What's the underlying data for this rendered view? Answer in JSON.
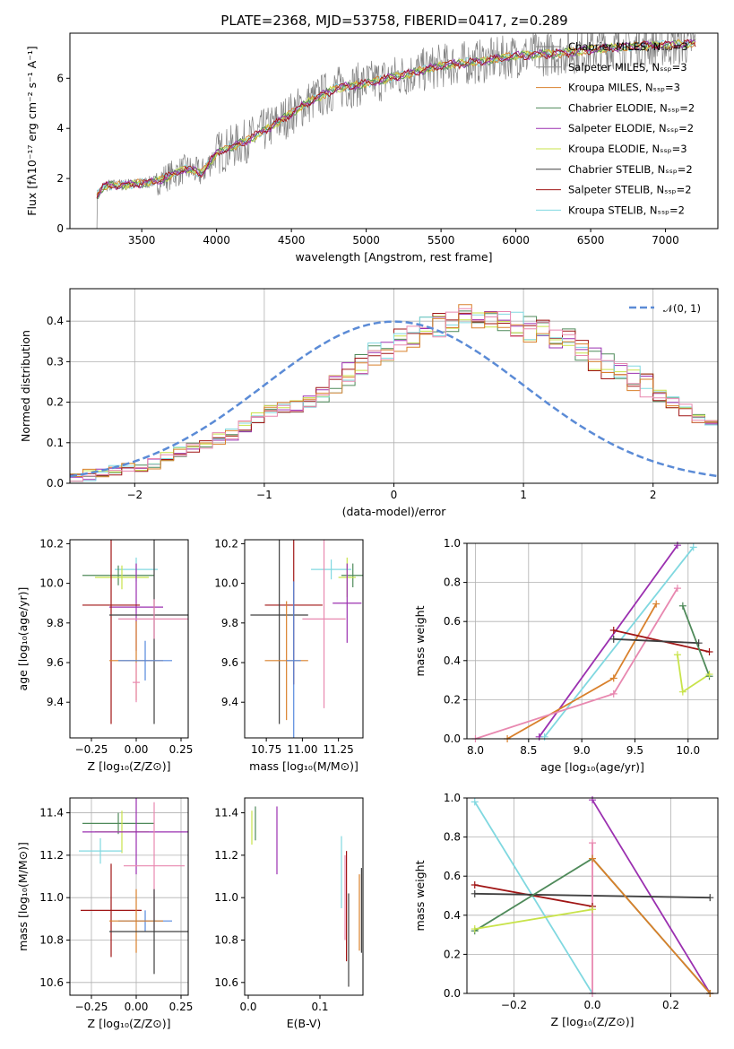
{
  "colors": {
    "chabrier_miles": "#808080",
    "salpeter_miles": "#8f8f8f",
    "kroupa_miles": "#d9802b",
    "chabrier_elodie": "#4f8a5a",
    "salpeter_elodie": "#9b30b0",
    "kroupa_elodie": "#c8e34a",
    "chabrier_stelib": "#404040",
    "salpeter_stelib": "#a01515",
    "kroupa_stelib": "#80d8e0",
    "pink": "#e888b0",
    "blue": "#5588dd",
    "normal_dash": "#5b8bd6"
  },
  "chart_data": [
    {
      "type": "line",
      "title": "PLATE=2368, MJD=53758, FIBERID=0417, z=0.289",
      "xlabel": "wavelength [Angstrom, rest frame]",
      "ylabel": "Flux [fλ10⁻¹⁷ erg cm⁻² s⁻¹ A⁻¹]",
      "xlim": [
        3020,
        7350
      ],
      "ylim": [
        0,
        7.8
      ],
      "xticks": [
        3500,
        4000,
        4500,
        5000,
        5500,
        6000,
        6500,
        7000
      ],
      "yticks": [
        0,
        2,
        4,
        6
      ],
      "legend_position": "upper-right",
      "legend": [
        "Chabrier MILES, Nₛₛₚ=3",
        "Salpeter MILES, Nₛₛₚ=3",
        "Kroupa MILES, Nₛₛₚ=3",
        "Chabrier ELODIE, Nₛₛₚ=2",
        "Salpeter ELODIE, Nₛₛₚ=2",
        "Kroupa ELODIE, Nₛₛₚ=3",
        "Chabrier STELIB, Nₛₛₚ=2",
        "Salpeter STELIB, Nₛₛₚ=2",
        "Kroupa STELIB, Nₛₛₚ=2"
      ],
      "continuum": {
        "x": [
          3200,
          3250,
          3500,
          3600,
          3800,
          3900,
          4000,
          4200,
          4400,
          4600,
          4800,
          5000,
          5300,
          5500,
          5800,
          6000,
          6300,
          6600,
          6900,
          7200
        ],
        "y": [
          1.3,
          1.7,
          1.8,
          1.9,
          2.4,
          2.2,
          3.0,
          3.5,
          4.2,
          5.0,
          5.6,
          5.8,
          6.2,
          6.5,
          6.7,
          6.9,
          7.0,
          7.2,
          7.3,
          7.4
        ]
      }
    },
    {
      "type": "step",
      "xlabel": "(data-model)/error",
      "ylabel": "Normed distribution",
      "xlim": [
        -2.5,
        2.5
      ],
      "ylim": [
        0,
        0.48
      ],
      "xticks": [
        -2,
        -1,
        0,
        1,
        2
      ],
      "yticks": [
        0.0,
        0.1,
        0.2,
        0.3,
        0.4
      ],
      "legend": [
        "𝒩(0, 1)"
      ],
      "legend_position": "upper-right",
      "bin_width": 0.1,
      "bin_start": -2.5,
      "mean_hist": [
        0.015,
        0.02,
        0.025,
        0.03,
        0.035,
        0.04,
        0.05,
        0.07,
        0.08,
        0.09,
        0.1,
        0.11,
        0.12,
        0.14,
        0.16,
        0.18,
        0.19,
        0.19,
        0.2,
        0.22,
        0.25,
        0.27,
        0.3,
        0.32,
        0.33,
        0.35,
        0.36,
        0.38,
        0.39,
        0.4,
        0.41,
        0.41,
        0.4,
        0.4,
        0.39,
        0.38,
        0.37,
        0.36,
        0.35,
        0.33,
        0.31,
        0.29,
        0.28,
        0.26,
        0.24,
        0.22,
        0.2,
        0.18,
        0.16,
        0.15,
        0.13,
        0.12,
        0.1,
        0.09,
        0.08,
        0.07,
        0.06,
        0.05,
        0.045,
        0.04,
        0.035,
        0.03,
        0.03,
        0.025,
        0.025,
        0.02,
        0.02,
        0.02,
        0.02,
        0.02
      ]
    },
    {
      "type": "errorbar",
      "xlabel": "Z [log₁₀(Z/Z⊙)]",
      "ylabel": "age  [log₁₀(age/yr)]",
      "xlim": [
        -0.37,
        0.29
      ],
      "ylim": [
        9.22,
        10.22
      ],
      "xticks": [
        -0.25,
        0.0,
        0.25
      ],
      "yticks": [
        9.4,
        9.6,
        9.8,
        10.0,
        10.2
      ],
      "points": [
        {
          "x": 0.0,
          "y": 10.07,
          "dx": 0.12,
          "dy": 0.06,
          "c": "kroupa_stelib"
        },
        {
          "x": -0.1,
          "y": 10.04,
          "dx": 0.2,
          "dy": 0.05,
          "c": "chabrier_elodie"
        },
        {
          "x": -0.08,
          "y": 10.03,
          "dx": 0.15,
          "dy": 0.06,
          "c": "kroupa_elodie"
        },
        {
          "x": 0.0,
          "y": 9.88,
          "dx": 0.15,
          "dy": 0.22,
          "c": "salpeter_elodie"
        },
        {
          "x": -0.14,
          "y": 9.89,
          "dx": 0.16,
          "dy": 0.6,
          "c": "salpeter_stelib"
        },
        {
          "x": 0.1,
          "y": 9.84,
          "dx": 0.25,
          "dy": 0.55,
          "c": "chabrier_stelib"
        },
        {
          "x": 0.1,
          "y": 9.82,
          "dx": 0.2,
          "dy": 0.1,
          "c": "pink"
        },
        {
          "x": 0.0,
          "y": 9.61,
          "dx": 0.15,
          "dy": 0.2,
          "c": "kroupa_miles"
        },
        {
          "x": 0.05,
          "y": 9.61,
          "dx": 0.15,
          "dy": 0.1,
          "c": "blue"
        },
        {
          "x": 0.0,
          "y": 9.5,
          "dx": 0.02,
          "dy": 0.1,
          "c": "pink"
        }
      ]
    },
    {
      "type": "errorbar",
      "xlabel": "mass [log₁₀(M/M⊙)]",
      "ylabel": "",
      "xlim": [
        10.6,
        11.42
      ],
      "ylim": [
        9.22,
        10.22
      ],
      "xticks": [
        10.75,
        11.0,
        11.25
      ],
      "yticks": [
        9.4,
        9.6,
        9.8,
        10.0,
        10.2
      ],
      "points": [
        {
          "x": 11.2,
          "y": 10.07,
          "dx": 0.14,
          "dy": 0.05,
          "c": "kroupa_stelib"
        },
        {
          "x": 11.35,
          "y": 10.04,
          "dx": 0.08,
          "dy": 0.06,
          "c": "chabrier_elodie"
        },
        {
          "x": 11.31,
          "y": 10.03,
          "dx": 0.06,
          "dy": 0.1,
          "c": "kroupa_elodie"
        },
        {
          "x": 11.31,
          "y": 9.9,
          "dx": 0.1,
          "dy": 0.2,
          "c": "salpeter_elodie"
        },
        {
          "x": 10.94,
          "y": 9.89,
          "dx": 0.2,
          "dy": 0.4,
          "c": "salpeter_stelib"
        },
        {
          "x": 10.84,
          "y": 9.84,
          "dx": 0.2,
          "dy": 0.55,
          "c": "chabrier_stelib"
        },
        {
          "x": 11.15,
          "y": 9.82,
          "dx": 0.15,
          "dy": 0.45,
          "c": "pink"
        },
        {
          "x": 10.89,
          "y": 9.61,
          "dx": 0.15,
          "dy": 0.3,
          "c": "kroupa_miles"
        },
        {
          "x": 10.94,
          "y": 9.61,
          "dx": 0.05,
          "dy": 0.4,
          "c": "blue"
        }
      ]
    },
    {
      "type": "line",
      "xlabel": "age  [log₁₀(age/yr)]",
      "ylabel": "mass weight",
      "xlim": [
        7.92,
        10.28
      ],
      "ylim": [
        0,
        1.0
      ],
      "xticks": [
        8.0,
        8.5,
        9.0,
        9.5,
        10.0
      ],
      "yticks": [
        0.0,
        0.2,
        0.4,
        0.6,
        0.8,
        1.0
      ],
      "series": [
        {
          "c": "salpeter_elodie",
          "x": [
            8.6,
            9.9
          ],
          "y": [
            0.01,
            0.99
          ]
        },
        {
          "c": "kroupa_stelib",
          "x": [
            8.65,
            10.05
          ],
          "y": [
            0.01,
            0.98
          ]
        },
        {
          "c": "kroupa_miles",
          "x": [
            8.3,
            9.3,
            9.7
          ],
          "y": [
            0.0,
            0.31,
            0.69
          ]
        },
        {
          "c": "pink",
          "x": [
            8.0,
            9.3,
            9.9
          ],
          "y": [
            0.0,
            0.23,
            0.77
          ]
        },
        {
          "c": "salpeter_stelib",
          "x": [
            9.3,
            10.2
          ],
          "y": [
            0.555,
            0.445
          ]
        },
        {
          "c": "chabrier_stelib",
          "x": [
            9.3,
            10.1
          ],
          "y": [
            0.51,
            0.49
          ]
        },
        {
          "c": "chabrier_elodie",
          "x": [
            9.95,
            10.2
          ],
          "y": [
            0.68,
            0.32
          ]
        },
        {
          "c": "kroupa_elodie",
          "x": [
            9.9,
            9.95,
            10.2
          ],
          "y": [
            0.43,
            0.24,
            0.33
          ]
        }
      ]
    },
    {
      "type": "errorbar",
      "xlabel": "Z [log₁₀(Z/Z⊙)]",
      "ylabel": "mass [log₁₀(M/M⊙)]",
      "xlim": [
        -0.37,
        0.29
      ],
      "ylim": [
        10.54,
        11.47
      ],
      "xticks": [
        -0.25,
        0.0,
        0.25
      ],
      "yticks": [
        10.6,
        10.8,
        11.0,
        11.2,
        11.4
      ],
      "points": [
        {
          "x": -0.1,
          "y": 11.35,
          "dx": 0.2,
          "dy": 0.05,
          "c": "chabrier_elodie"
        },
        {
          "x": -0.08,
          "y": 11.31,
          "dx": 0.15,
          "dy": 0.1,
          "c": "kroupa_elodie"
        },
        {
          "x": 0.0,
          "y": 11.31,
          "dx": 0.3,
          "dy": 0.2,
          "c": "salpeter_elodie"
        },
        {
          "x": -0.2,
          "y": 11.22,
          "dx": 0.12,
          "dy": 0.06,
          "c": "kroupa_stelib"
        },
        {
          "x": 0.1,
          "y": 11.15,
          "dx": 0.17,
          "dy": 0.3,
          "c": "pink"
        },
        {
          "x": -0.14,
          "y": 10.94,
          "dx": 0.17,
          "dy": 0.22,
          "c": "salpeter_stelib"
        },
        {
          "x": 0.05,
          "y": 10.89,
          "dx": 0.15,
          "dy": 0.05,
          "c": "blue"
        },
        {
          "x": 0.0,
          "y": 10.89,
          "dx": 0.15,
          "dy": 0.15,
          "c": "kroupa_miles"
        },
        {
          "x": 0.1,
          "y": 10.84,
          "dx": 0.25,
          "dy": 0.2,
          "c": "chabrier_stelib"
        }
      ]
    },
    {
      "type": "errorbar",
      "xlabel": "E(B-V)",
      "ylabel": "",
      "xlim": [
        -0.005,
        0.16
      ],
      "ylim": [
        10.54,
        11.47
      ],
      "xticks": [
        0.0,
        0.1
      ],
      "yticks": [
        10.6,
        10.8,
        11.0,
        11.2,
        11.4
      ],
      "points": [
        {
          "x": 0.005,
          "y": 11.33,
          "dx": 0,
          "dy": 0.08,
          "c": "kroupa_elodie"
        },
        {
          "x": 0.01,
          "y": 11.35,
          "dx": 0,
          "dy": 0.08,
          "c": "chabrier_elodie"
        },
        {
          "x": 0.04,
          "y": 11.27,
          "dx": 0,
          "dy": 0.16,
          "c": "salpeter_elodie"
        },
        {
          "x": 0.13,
          "y": 11.12,
          "dx": 0,
          "dy": 0.17,
          "c": "kroupa_stelib"
        },
        {
          "x": 0.135,
          "y": 11.0,
          "dx": 0,
          "dy": 0.2,
          "c": "pink"
        },
        {
          "x": 0.137,
          "y": 10.96,
          "dx": 0,
          "dy": 0.26,
          "c": "salpeter_stelib"
        },
        {
          "x": 0.14,
          "y": 10.8,
          "dx": 0,
          "dy": 0.22,
          "c": "chabrier_stelib"
        },
        {
          "x": 0.155,
          "y": 10.93,
          "dx": 0,
          "dy": 0.18,
          "c": "kroupa_miles"
        },
        {
          "x": 0.158,
          "y": 10.94,
          "dx": 0,
          "dy": 0.2,
          "c": "chabrier_stelib"
        }
      ]
    },
    {
      "type": "line",
      "xlabel": "Z [log₁₀(Z/Z⊙)]",
      "ylabel": "mass weight",
      "xlim": [
        -0.32,
        0.32
      ],
      "ylim": [
        0,
        1.0
      ],
      "xticks": [
        -0.2,
        0.0,
        0.2
      ],
      "yticks": [
        0.0,
        0.2,
        0.4,
        0.6,
        0.8,
        1.0
      ],
      "series": [
        {
          "c": "kroupa_stelib",
          "x": [
            -0.3,
            0.0
          ],
          "y": [
            0.98,
            0.0
          ]
        },
        {
          "c": "salpeter_elodie",
          "x": [
            0.0,
            0.3
          ],
          "y": [
            0.99,
            0.0
          ]
        },
        {
          "c": "salpeter_stelib",
          "x": [
            -0.3,
            0.0
          ],
          "y": [
            0.555,
            0.445
          ]
        },
        {
          "c": "chabrier_stelib",
          "x": [
            -0.3,
            0.3
          ],
          "y": [
            0.51,
            0.49
          ]
        },
        {
          "c": "chabrier_elodie",
          "x": [
            -0.3,
            0.0,
            0.3
          ],
          "y": [
            0.32,
            0.69,
            0.0
          ]
        },
        {
          "c": "kroupa_miles",
          "x": [
            0.0,
            0.3
          ],
          "y": [
            0.69,
            0.0
          ]
        },
        {
          "c": "kroupa_elodie",
          "x": [
            -0.3,
            0.0
          ],
          "y": [
            0.33,
            0.43
          ]
        },
        {
          "c": "pink",
          "x": [
            0.0,
            0.0
          ],
          "y": [
            0.0,
            0.77
          ]
        }
      ]
    }
  ]
}
